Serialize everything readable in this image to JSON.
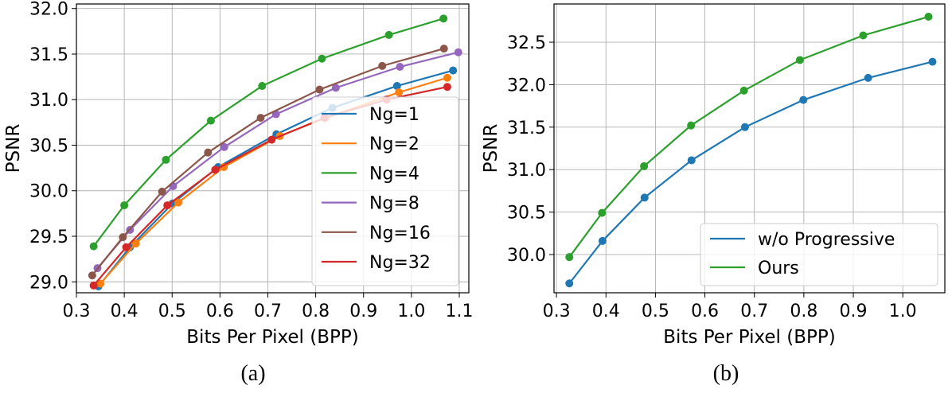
{
  "chart_data": [
    {
      "type": "line",
      "caption": "(a)",
      "xlabel": "Bits Per Pixel (BPP)",
      "ylabel": "PSNR",
      "xlim": [
        0.3,
        1.12
      ],
      "ylim": [
        28.88,
        32.05
      ],
      "xticks": [
        "0.3",
        "0.4",
        "0.5",
        "0.6",
        "0.7",
        "0.8",
        "0.9",
        "1.0",
        "1.1"
      ],
      "yticks": [
        "29.0",
        "29.5",
        "30.0",
        "30.5",
        "31.0",
        "31.5",
        "32.0"
      ],
      "grid": true,
      "legend_position": "lower-right",
      "series": [
        {
          "name": "Ng=1",
          "color": "#1f77b4",
          "x": [
            0.346,
            0.412,
            0.501,
            0.596,
            0.718,
            0.835,
            0.97,
            1.087
          ],
          "y": [
            28.95,
            29.38,
            29.86,
            30.26,
            30.62,
            30.91,
            31.15,
            31.32
          ]
        },
        {
          "name": "Ng=2",
          "color": "#ff7f0e",
          "x": [
            0.35,
            0.424,
            0.513,
            0.608,
            0.725,
            0.821,
            0.974,
            1.075
          ],
          "y": [
            28.98,
            29.42,
            29.87,
            30.26,
            30.6,
            30.8,
            31.08,
            31.24
          ]
        },
        {
          "name": "Ng=4",
          "color": "#2ca02c",
          "x": [
            0.336,
            0.4,
            0.487,
            0.581,
            0.688,
            0.813,
            0.953,
            1.067
          ],
          "y": [
            29.39,
            29.84,
            30.34,
            30.77,
            31.15,
            31.45,
            31.71,
            31.89
          ]
        },
        {
          "name": "Ng=8",
          "color": "#9467bd",
          "x": [
            0.344,
            0.412,
            0.502,
            0.609,
            0.717,
            0.842,
            0.976,
            1.098
          ],
          "y": [
            29.15,
            29.57,
            30.05,
            30.48,
            30.84,
            31.13,
            31.36,
            31.52
          ]
        },
        {
          "name": "Ng=16",
          "color": "#8c564b",
          "x": [
            0.333,
            0.397,
            0.479,
            0.575,
            0.685,
            0.808,
            0.939,
            1.068
          ],
          "y": [
            29.07,
            29.49,
            29.99,
            30.42,
            30.8,
            31.11,
            31.37,
            31.56
          ]
        },
        {
          "name": "Ng=32",
          "color": "#d62728",
          "x": [
            0.336,
            0.404,
            0.49,
            0.59,
            0.708,
            0.818,
            0.948,
            1.075
          ],
          "y": [
            28.96,
            29.38,
            29.84,
            30.23,
            30.56,
            30.8,
            31.0,
            31.14
          ]
        }
      ]
    },
    {
      "type": "line",
      "caption": "(b)",
      "xlabel": "Bits Per Pixel (BPP)",
      "ylabel": "PSNR",
      "xlim": [
        0.295,
        1.085
      ],
      "ylim": [
        29.55,
        32.95
      ],
      "xticks": [
        "0.3",
        "0.4",
        "0.5",
        "0.6",
        "0.7",
        "0.8",
        "0.9",
        "1.0"
      ],
      "yticks": [
        "30.0",
        "30.5",
        "31.0",
        "31.5",
        "32.0",
        "32.5"
      ],
      "grid": true,
      "legend_position": "lower-right",
      "series": [
        {
          "name": "w/o Progressive",
          "color": "#1f77b4",
          "x": [
            0.326,
            0.393,
            0.478,
            0.573,
            0.681,
            0.799,
            0.93,
            1.06
          ],
          "y": [
            29.66,
            30.16,
            30.67,
            31.11,
            31.5,
            31.82,
            32.08,
            32.27
          ]
        },
        {
          "name": "Ours",
          "color": "#2ca02c",
          "x": [
            0.326,
            0.392,
            0.477,
            0.572,
            0.679,
            0.792,
            0.92,
            1.052
          ],
          "y": [
            29.97,
            30.49,
            31.04,
            31.52,
            31.93,
            32.29,
            32.58,
            32.8
          ]
        }
      ]
    }
  ]
}
